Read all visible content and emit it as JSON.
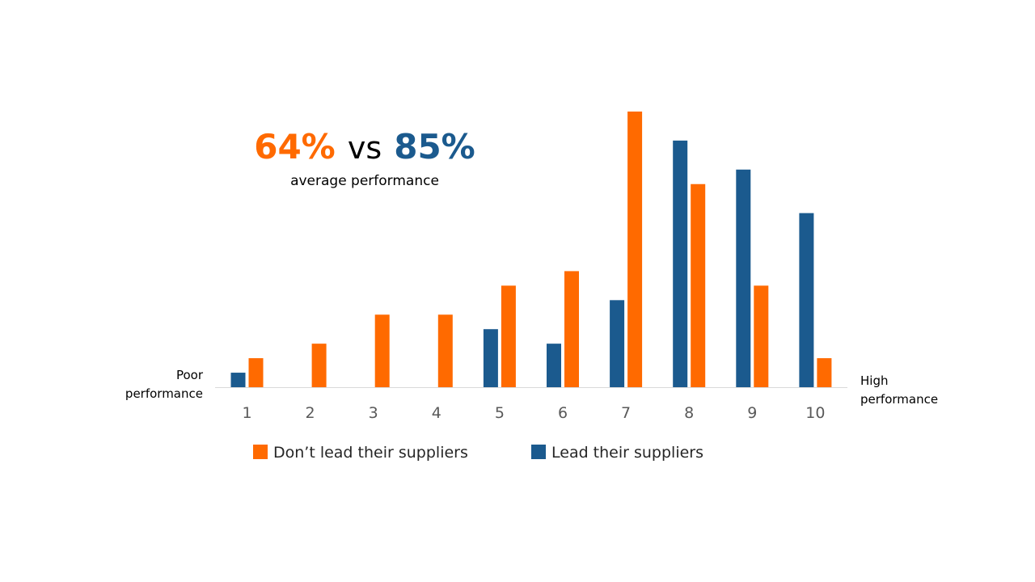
{
  "headline": {
    "left_value": "64%",
    "vs_text": "vs",
    "right_value": "85%",
    "subtitle": "average performance"
  },
  "axis_end_labels": {
    "low": [
      "Poor",
      "performance"
    ],
    "high": [
      "High",
      "performance"
    ]
  },
  "colors": {
    "orange": "#FF6A00",
    "blue": "#1B5A8E",
    "axis": "#D9D9D9"
  },
  "chart_data": {
    "type": "bar",
    "categories": [
      "1",
      "2",
      "3",
      "4",
      "5",
      "6",
      "7",
      "8",
      "9",
      "10"
    ],
    "series": [
      {
        "name": "Lead their suppliers",
        "color": "#1B5A8E",
        "values": [
          1,
          0,
          0,
          0,
          4,
          3,
          6,
          17,
          15,
          12
        ]
      },
      {
        "name": "Don’t lead their suppliers",
        "color": "#FF6A00",
        "values": [
          2,
          3,
          5,
          5,
          7,
          8,
          19,
          14,
          7,
          2
        ]
      }
    ],
    "legend": {
      "position": "bottom",
      "order": [
        "Don’t lead their suppliers",
        "Lead their suppliers"
      ]
    },
    "xlabel": "",
    "ylabel": "",
    "ylim": [
      0,
      19
    ],
    "grid": false
  }
}
